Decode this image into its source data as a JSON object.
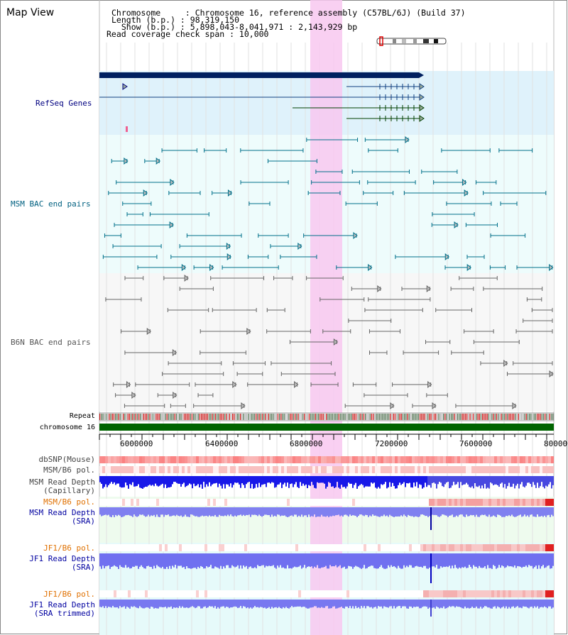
{
  "header": {
    "title": "Map View",
    "info_lines": [
      "Chromosome     : Chromosome 16, reference assembly (C57BL/6J) (Build 37)",
      "Length (b.p.) : 98,319,150",
      "  Show (b.p.) : 5,898,043-8,041,971 : 2,143,929 bp",
      "Read coverage check span : 10,000"
    ]
  },
  "tracks": {
    "refseq": {
      "label": "RefSeq Genes",
      "color": "#000080"
    },
    "msm_bac": {
      "label": "MSM BAC end pairs",
      "color": "#006080"
    },
    "b6n_bac": {
      "label": "B6N BAC end pairs",
      "color": "#555555"
    },
    "repeat": {
      "label": "Repeat"
    },
    "chromosome": {
      "label": "chromosome 16",
      "color": "#006400"
    },
    "dbsnp": {
      "label": "dbSNP(Mouse)"
    },
    "msm_b6_pol": {
      "label": "MSM/B6 pol."
    },
    "msm_depth_cap": {
      "label": "MSM Read Depth",
      "label2": "(Capillary)"
    },
    "msm_b6_pol2": {
      "label": "MSM/B6 pol.",
      "color": "#e07000"
    },
    "msm_depth_sra": {
      "label": "MSM Read Depth",
      "label2": "(SRA)",
      "color": "#0000a0"
    },
    "jf1_b6_pol": {
      "label": "JF1/B6 pol.",
      "color": "#e07000"
    },
    "jf1_depth_sra": {
      "label": "JF1 Read Depth",
      "label2": "(SRA)",
      "color": "#0000a0"
    },
    "jf1_b6_pol2": {
      "label": "JF1/B6 pol.",
      "color": "#e07000"
    },
    "jf1_depth_trim": {
      "label": "JF1 Read Depth",
      "label2": "(SRA trimmed)",
      "color": "#0000a0"
    }
  },
  "axis": {
    "ticks": [
      "6000000",
      "6400000",
      "6800000",
      "7200000",
      "7600000",
      "8000000"
    ]
  },
  "highlight": {
    "color": "#f8c8f0"
  }
}
